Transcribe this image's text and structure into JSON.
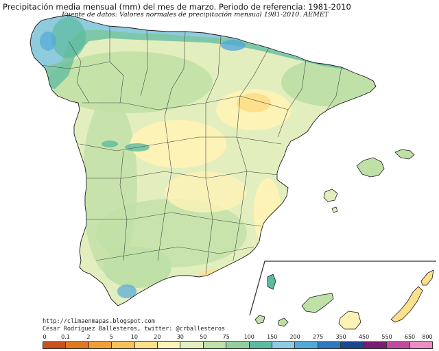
{
  "title": "Precipitación media mensual (mm) del mes de marzo. Periodo de referencia: 1981-2010",
  "subtitle": "Fuente de datos: Valores normales de precipitación mensual 1981-2010. AEMET",
  "credits": {
    "url": "http://climaenmapas.blogspot.com",
    "author": "César Rodríguez Ballesteros, twitter: @crballesteros"
  },
  "legend": {
    "ticks": [
      "0",
      "0.1",
      "2",
      "5",
      "10",
      "20",
      "30",
      "50",
      "75",
      "100",
      "150",
      "200",
      "275",
      "350",
      "450",
      "550",
      "650",
      "800"
    ],
    "colors": [
      "#c8511e",
      "#e2771f",
      "#f29e36",
      "#f9c15a",
      "#fde08c",
      "#fdf3b7",
      "#e3eebe",
      "#bfe0a6",
      "#93cf9c",
      "#5cbaa0",
      "#8fcbe6",
      "#54a8d8",
      "#2d79bd",
      "#1c4791",
      "#7a1d72",
      "#c04b9f",
      "#e98ec6"
    ]
  },
  "regions": {
    "mainland": "Península Ibérica",
    "balearic": "Islas Baleares",
    "canary": "Islas Canarias"
  },
  "colors": {
    "coastline": "#1a1a1a",
    "province_border": "#444444",
    "background": "#ffffff"
  }
}
